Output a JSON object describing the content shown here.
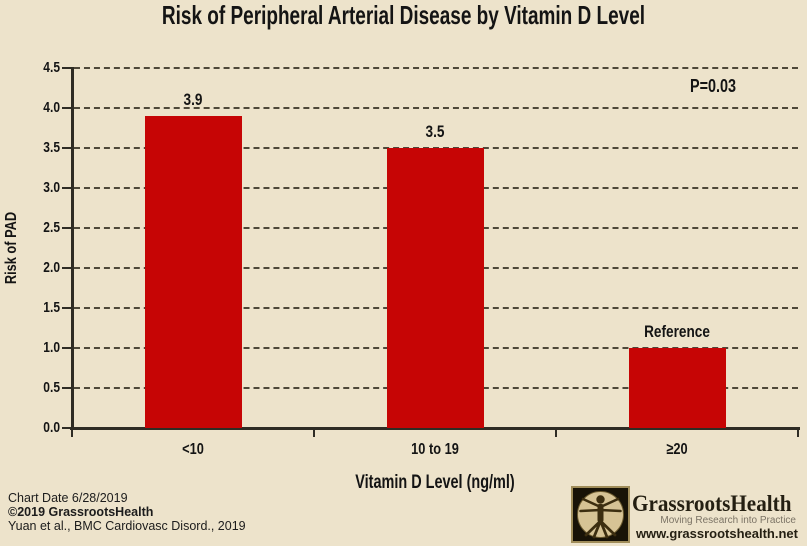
{
  "title": "Risk of Peripheral Arterial Disease by Vitamin D Level",
  "chart_data": {
    "type": "bar",
    "title": "Risk of Peripheral Arterial Disease by Vitamin D Level",
    "categories": [
      "<10",
      "10 to 19",
      "≥20"
    ],
    "values": [
      3.9,
      3.5,
      1.0
    ],
    "bar_labels": [
      "3.9",
      "3.5",
      "Reference"
    ],
    "xlabel": "Vitamin D Level (ng/ml)",
    "ylabel": "Risk of PAD",
    "ylim": [
      0.0,
      4.5
    ],
    "ytick_step": 0.5,
    "ytick_labels": [
      "0.0",
      "0.5",
      "1.0",
      "1.5",
      "2.0",
      "2.5",
      "3.0",
      "3.5",
      "4.0",
      "4.5"
    ],
    "grid": "horizontal-dashed",
    "legend": "none",
    "annotations": [
      "P=0.03"
    ],
    "bar_color": "#c60505",
    "background_color": "#ede3cb",
    "axis_color": "#2f2c24"
  },
  "footer": {
    "line1": "Chart Date 6/28/2019",
    "line2": "©2019 GrassrootsHealth",
    "line3": "Yuan et al., BMC Cardiovasc Disord., 2019"
  },
  "logo": {
    "icon": "vitruvian-man-icon",
    "name": "GrassrootsHealth",
    "tagline": "Moving Research into Practice",
    "website": "www.grassrootshealth.net"
  }
}
